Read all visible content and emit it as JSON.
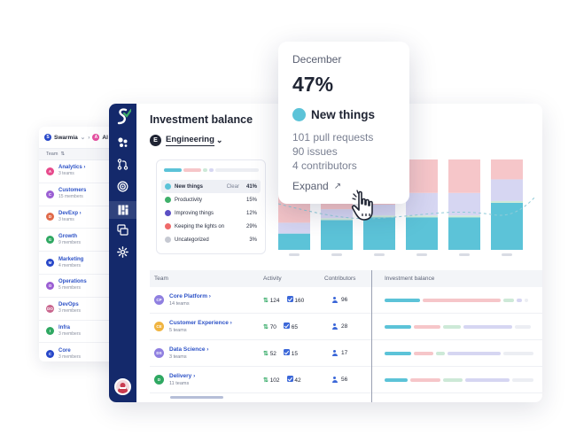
{
  "back_panel": {
    "org": "Swarmia",
    "org2": "Al",
    "team_header": "Team",
    "teams": [
      {
        "name": "Analytics",
        "sub": "3 teams",
        "chev": true,
        "color": "#e74a8c",
        "initials": "A"
      },
      {
        "name": "Customers",
        "sub": "15 members",
        "chev": false,
        "color": "#9b5fd3",
        "initials": "C"
      },
      {
        "name": "DevExp",
        "sub": "3 teams",
        "chev": true,
        "color": "#e06a4a",
        "initials": "D"
      },
      {
        "name": "Growth",
        "sub": "9 members",
        "chev": false,
        "color": "#2fa862",
        "initials": "G"
      },
      {
        "name": "Marketing",
        "sub": "4 members",
        "chev": false,
        "color": "#2747c9",
        "initials": "M"
      },
      {
        "name": "Operations",
        "sub": "5 members",
        "chev": false,
        "color": "#9b5fd3",
        "initials": "O"
      },
      {
        "name": "DevOps",
        "sub": "3 members",
        "chev": false,
        "color": "#c9668e",
        "initials": "DO"
      },
      {
        "name": "Infra",
        "sub": "3 members",
        "chev": false,
        "color": "#2fa862",
        "initials": "I"
      },
      {
        "name": "Core",
        "sub": "3 members",
        "chev": false,
        "color": "#2747c9",
        "initials": "C"
      }
    ]
  },
  "main": {
    "title": "Investment balance",
    "org_initial": "E",
    "org_name": "Engineering",
    "legend": {
      "bar": [
        {
          "color": "#5cc3d8",
          "flex": 20
        },
        {
          "color": "#f6c6c9",
          "flex": 20
        },
        {
          "color": "#cde9d7",
          "flex": 5
        },
        {
          "color": "#d6d6f2",
          "flex": 5
        },
        {
          "color": "#eceef3",
          "flex": 50
        }
      ],
      "clear_label": "Clear",
      "items": [
        {
          "label": "New things",
          "pct": "41%",
          "color": "#5cc3d8",
          "selected": true
        },
        {
          "label": "Productivity",
          "pct": "15%",
          "color": "#3fb06a",
          "selected": false
        },
        {
          "label": "Improving things",
          "pct": "12%",
          "color": "#5b4fc4",
          "selected": false
        },
        {
          "label": "Keeping the lights on",
          "pct": "29%",
          "color": "#ef6a6a",
          "selected": false
        },
        {
          "label": "Uncategorized",
          "pct": "3%",
          "color": "#c6c9d2",
          "selected": false
        }
      ]
    },
    "table": {
      "headers": {
        "team": "Team",
        "activity": "Activity",
        "contributors": "Contributors",
        "investment": "Investment balance"
      },
      "rows": [
        {
          "initials": "CP",
          "color": "#8f7fe0",
          "name": "Core Platform",
          "sub": "14 teams",
          "prs": "124",
          "issues": "160",
          "contributors": "96",
          "segments": [
            [
              "#5cc3d8",
              40
            ],
            [
              "#f6c6c9",
              88
            ],
            [
              "#cde9d7",
              12
            ],
            [
              "#d6d6f2",
              6
            ],
            [
              "#eceef3",
              4
            ]
          ]
        },
        {
          "initials": "CE",
          "color": "#f0b440",
          "name": "Customer Experience",
          "sub": "5 teams",
          "prs": "70",
          "issues": "65",
          "contributors": "28",
          "segments": [
            [
              "#5cc3d8",
              30
            ],
            [
              "#f6c6c9",
              30
            ],
            [
              "#cde9d7",
              20
            ],
            [
              "#d6d6f2",
              55
            ],
            [
              "#eceef3",
              18
            ]
          ]
        },
        {
          "initials": "DS",
          "color": "#8f7fe0",
          "name": "Data Science",
          "sub": "3 teams",
          "prs": "52",
          "issues": "15",
          "contributors": "17",
          "segments": [
            [
              "#5cc3d8",
              30
            ],
            [
              "#f6c6c9",
              22
            ],
            [
              "#cde9d7",
              10
            ],
            [
              "#d6d6f2",
              60
            ],
            [
              "#eceef3",
              34
            ]
          ]
        },
        {
          "initials": "D",
          "color": "#2fa862",
          "name": "Delivery",
          "sub": "11 teams",
          "prs": "102",
          "issues": "42",
          "contributors": "56",
          "segments": [
            [
              "#5cc3d8",
              26
            ],
            [
              "#f6c6c9",
              34
            ],
            [
              "#cde9d7",
              22
            ],
            [
              "#d6d6f2",
              50
            ],
            [
              "#eceef3",
              24
            ]
          ]
        }
      ]
    }
  },
  "chart_data": {
    "type": "bar",
    "stacked": true,
    "series": [
      {
        "color": "#5cc3d8",
        "values": [
          18,
          33,
          36,
          36,
          36,
          52
        ]
      },
      {
        "color": "#cde9d7",
        "values": [
          0,
          2,
          2,
          2,
          2,
          2
        ]
      },
      {
        "color": "#d6d6f2",
        "values": [
          12,
          10,
          12,
          25,
          25,
          24
        ]
      },
      {
        "color": "#f6c6c9",
        "values": [
          35,
          25,
          30,
          37,
          37,
          22
        ]
      }
    ],
    "ylim": [
      0,
      100
    ]
  },
  "tooltip": {
    "month": "December",
    "pct": "47%",
    "category": "New things",
    "stats": [
      "101 pull requests",
      "90 issues",
      "4 contributors"
    ],
    "expand": "Expand"
  }
}
